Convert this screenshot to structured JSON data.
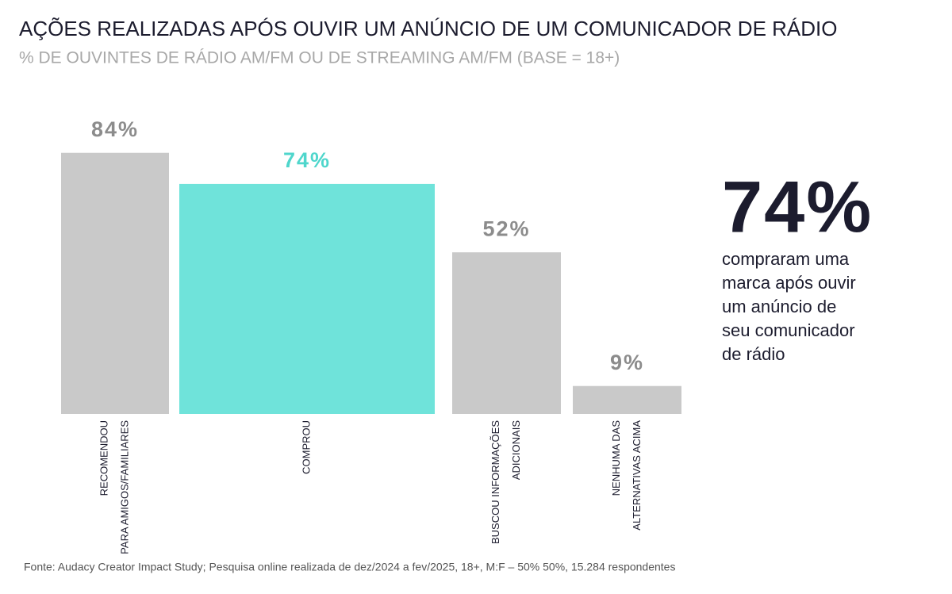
{
  "chart_data": {
    "type": "bar",
    "title": "AÇÕES REALIZADAS APÓS OUVIR UM ANÚNCIO DE UM COMUNICADOR DE RÁDIO",
    "subtitle": "% DE OUVINTES DE RÁDIO AM/FM OU DE STREAMING AM/FM (BASE = 18+)",
    "categories": [
      [
        "RECOMENDOU",
        "PARA AMIGOS/FAMILIARES"
      ],
      [
        "COMPROU"
      ],
      [
        "BUSCOU INFORMAÇÕES",
        "ADICIONAIS"
      ],
      [
        "NENHUMA DAS",
        "ALTERNATIVAS ACIMA"
      ]
    ],
    "values": [
      84,
      74,
      52,
      9
    ],
    "value_labels": [
      "84%",
      "74%",
      "52%",
      "9%"
    ],
    "colors": [
      "#c9c9c9",
      "#6fe3da",
      "#c9c9c9",
      "#c9c9c9"
    ],
    "label_colors": [
      "#8c8c8c",
      "#4fd6cc",
      "#8c8c8c",
      "#8c8c8c"
    ],
    "callout": {
      "label": "74%",
      "text_lines": [
        "compraram uma",
        "marca após ouvir",
        "um anúncio de",
        "seu comunicador",
        "de rádio"
      ]
    },
    "source": "Fonte: Audacy Creator Impact Study; Pesquisa online realizada de dez/2024 a fev/2025, 18+, M:F – 50% 50%, 15.284 respondentes"
  }
}
